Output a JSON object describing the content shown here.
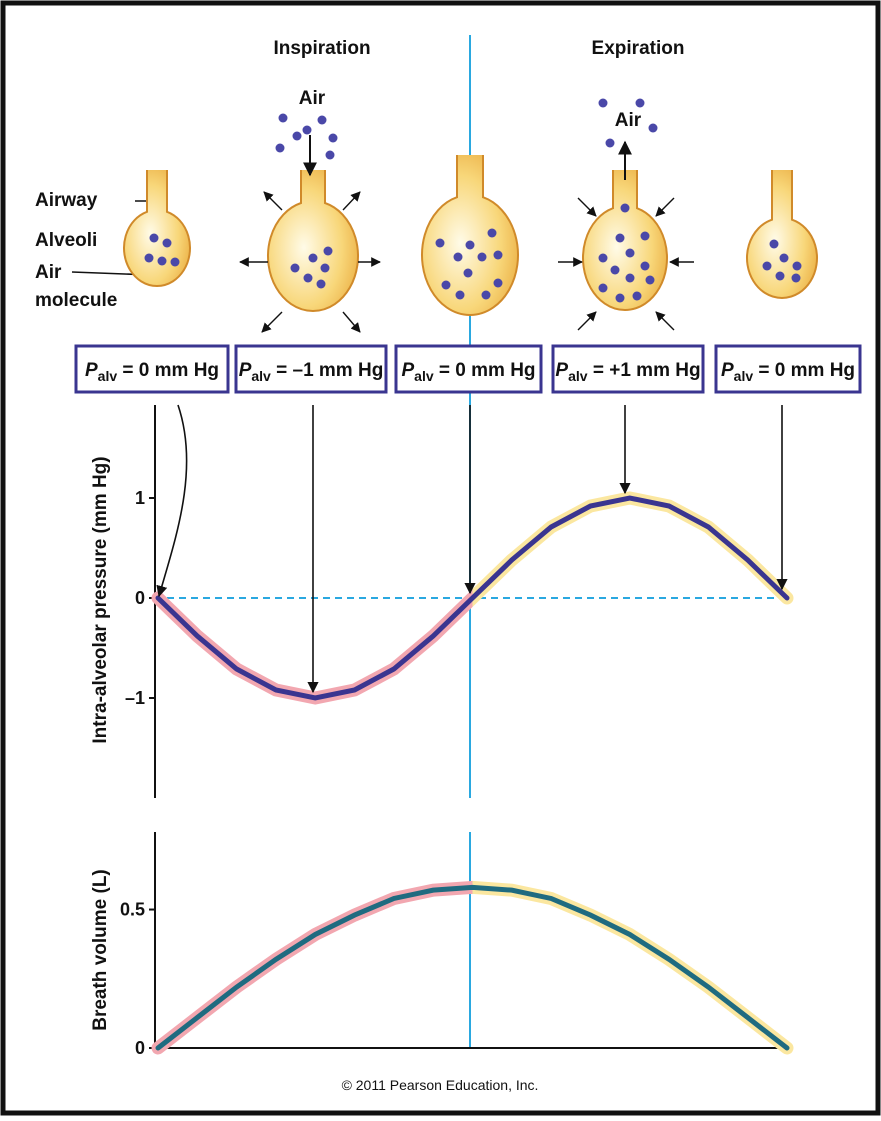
{
  "diagram": {
    "phases": [
      "Inspiration",
      "Expiration"
    ],
    "air_labels": [
      "Air",
      "Air"
    ],
    "parts": {
      "airway": "Airway",
      "alveoli": "Alveoli",
      "air_molecule": [
        "Air",
        "molecule"
      ]
    },
    "pressure_boxes": [
      {
        "symbol": "P",
        "subscript": "alv",
        "text": " = 0 mm Hg"
      },
      {
        "symbol": "P",
        "subscript": "alv",
        "text": " = –1 mm Hg"
      },
      {
        "symbol": "P",
        "subscript": "alv",
        "text": " = 0 mm Hg"
      },
      {
        "symbol": "P",
        "subscript": "alv",
        "text": " = +1 mm Hg"
      },
      {
        "symbol": "P",
        "subscript": "alv",
        "text": " = 0 mm Hg"
      }
    ],
    "copyright": "© 2011 Pearson Education, Inc."
  },
  "chart_data": [
    {
      "type": "line",
      "y_label": "Intra-alveolar pressure (mm Hg)",
      "values": [
        0,
        -0.38,
        -0.71,
        -0.92,
        -1,
        -0.92,
        -0.71,
        -0.38,
        0,
        0.38,
        0.71,
        0.92,
        1,
        0.92,
        0.71,
        0.38,
        0
      ],
      "color": "#3a3590",
      "ylim": [
        -2,
        1.93
      ],
      "yticks": [
        {
          "value": -1,
          "label": "–1"
        },
        0,
        1
      ],
      "zero_line": true
    },
    {
      "type": "line",
      "y_label": "Breath volume (L)",
      "values": [
        0,
        0.11,
        0.22,
        0.32,
        0.41,
        0.48,
        0.54,
        0.57,
        0.58,
        0.57,
        0.54,
        0.48,
        0.41,
        0.32,
        0.22,
        0.11,
        0
      ],
      "color": "#1f6b80",
      "ylim": [
        0,
        0.78
      ],
      "yticks": [
        0,
        0.5
      ],
      "zero_line": false
    }
  ]
}
